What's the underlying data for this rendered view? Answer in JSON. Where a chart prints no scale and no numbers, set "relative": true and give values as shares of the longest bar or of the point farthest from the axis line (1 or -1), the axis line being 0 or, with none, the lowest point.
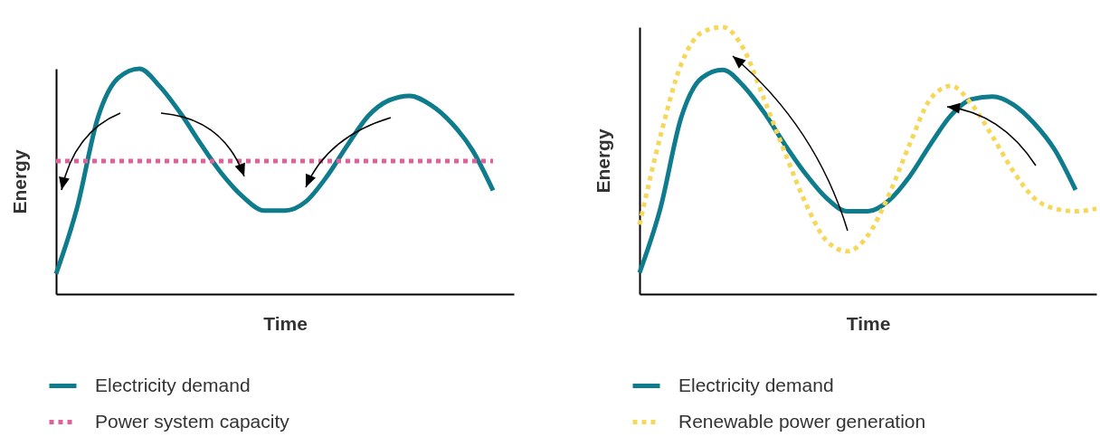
{
  "chart_data": [
    {
      "type": "line",
      "relative": true,
      "xlabel": "Time",
      "ylabel": "Energy",
      "legend": "bottom",
      "categories": [
        null,
        null,
        null,
        null,
        null,
        null,
        null,
        null,
        null,
        null,
        null,
        null,
        null,
        null,
        null,
        null,
        null,
        null,
        null,
        null,
        null,
        null,
        null
      ],
      "series": [
        {
          "name": "Electricity demand",
          "color": "#0e7c8c",
          "line_style": "solid",
          "values": [
            0.09,
            0.38,
            0.78,
            0.96,
            1.0,
            0.92,
            0.8,
            0.66,
            0.53,
            0.43,
            0.37,
            0.37,
            0.41,
            0.52,
            0.66,
            0.79,
            0.86,
            0.88,
            0.84,
            0.76,
            0.64,
            0.46,
            null
          ]
        },
        {
          "name": "Power system capacity",
          "color": "#e0609a",
          "line_style": "dotted",
          "values": [
            0.59,
            0.59,
            0.59,
            0.59,
            0.59,
            0.59,
            0.59,
            0.59,
            0.59,
            0.59,
            0.59,
            0.59,
            0.59,
            0.59,
            0.59,
            0.59,
            0.59,
            0.59,
            0.59,
            0.59,
            0.59,
            0.59,
            null
          ]
        }
      ]
    },
    {
      "type": "line",
      "relative": true,
      "xlabel": "Time",
      "ylabel": "Energy",
      "legend": "bottom",
      "categories": [
        null,
        null,
        null,
        null,
        null,
        null,
        null,
        null,
        null,
        null,
        null,
        null,
        null,
        null,
        null,
        null,
        null,
        null,
        null,
        null,
        null,
        null,
        null
      ],
      "series": [
        {
          "name": "Electricity demand",
          "color": "#0e7c8c",
          "line_style": "solid",
          "values": [
            0.08,
            0.32,
            0.66,
            0.81,
            0.84,
            0.78,
            0.68,
            0.56,
            0.45,
            0.36,
            0.31,
            0.31,
            0.35,
            0.44,
            0.56,
            0.67,
            0.73,
            0.74,
            0.71,
            0.64,
            0.54,
            0.39,
            null
          ]
        },
        {
          "name": "Renewable power generation",
          "color": "#f5d85a",
          "line_style": "dotted",
          "values": [
            0.26,
            0.59,
            0.86,
            0.98,
            1.0,
            0.92,
            0.73,
            0.53,
            0.34,
            0.2,
            0.16,
            0.22,
            0.37,
            0.56,
            0.73,
            0.78,
            0.71,
            0.59,
            0.46,
            0.36,
            0.32,
            0.31,
            0.32
          ]
        }
      ]
    }
  ]
}
